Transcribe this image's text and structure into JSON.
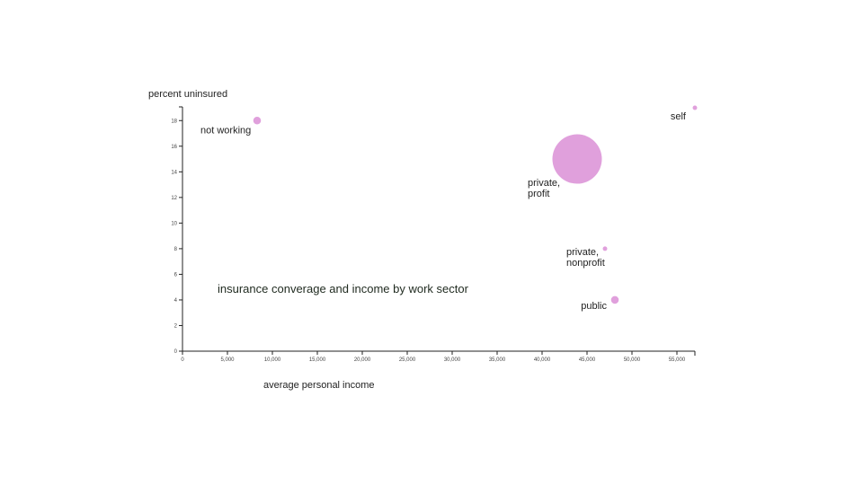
{
  "chart_data": {
    "type": "scatter",
    "title": "insurance converage and income by work sector",
    "xlabel": "average personal income",
    "ylabel": "percent uninsured",
    "xlim": [
      0,
      57000
    ],
    "ylim": [
      0,
      19
    ],
    "x_ticks": [
      "0",
      "5,000",
      "10,000",
      "15,000",
      "20,000",
      "25,000",
      "30,000",
      "35,000",
      "40,000",
      "45,000",
      "50,000",
      "55,000"
    ],
    "y_ticks": [
      "0",
      "2",
      "4",
      "6",
      "8",
      "10",
      "12",
      "14",
      "16",
      "18"
    ],
    "grid": false,
    "legend": "none",
    "color": "#e0a0dc",
    "points": [
      {
        "label": [
          "not working"
        ],
        "x": 8300,
        "y": 18,
        "size": 2.4
      },
      {
        "label": [
          "private,",
          "profit"
        ],
        "x": 43900,
        "y": 15,
        "size": 100
      },
      {
        "label": [
          "self"
        ],
        "x": 57000,
        "y": 19,
        "size": 0.8
      },
      {
        "label": [
          "private,",
          "nonprofit"
        ],
        "x": 47000,
        "y": 8,
        "size": 0.8
      },
      {
        "label": [
          "public"
        ],
        "x": 48100,
        "y": 4,
        "size": 2.4
      }
    ]
  }
}
